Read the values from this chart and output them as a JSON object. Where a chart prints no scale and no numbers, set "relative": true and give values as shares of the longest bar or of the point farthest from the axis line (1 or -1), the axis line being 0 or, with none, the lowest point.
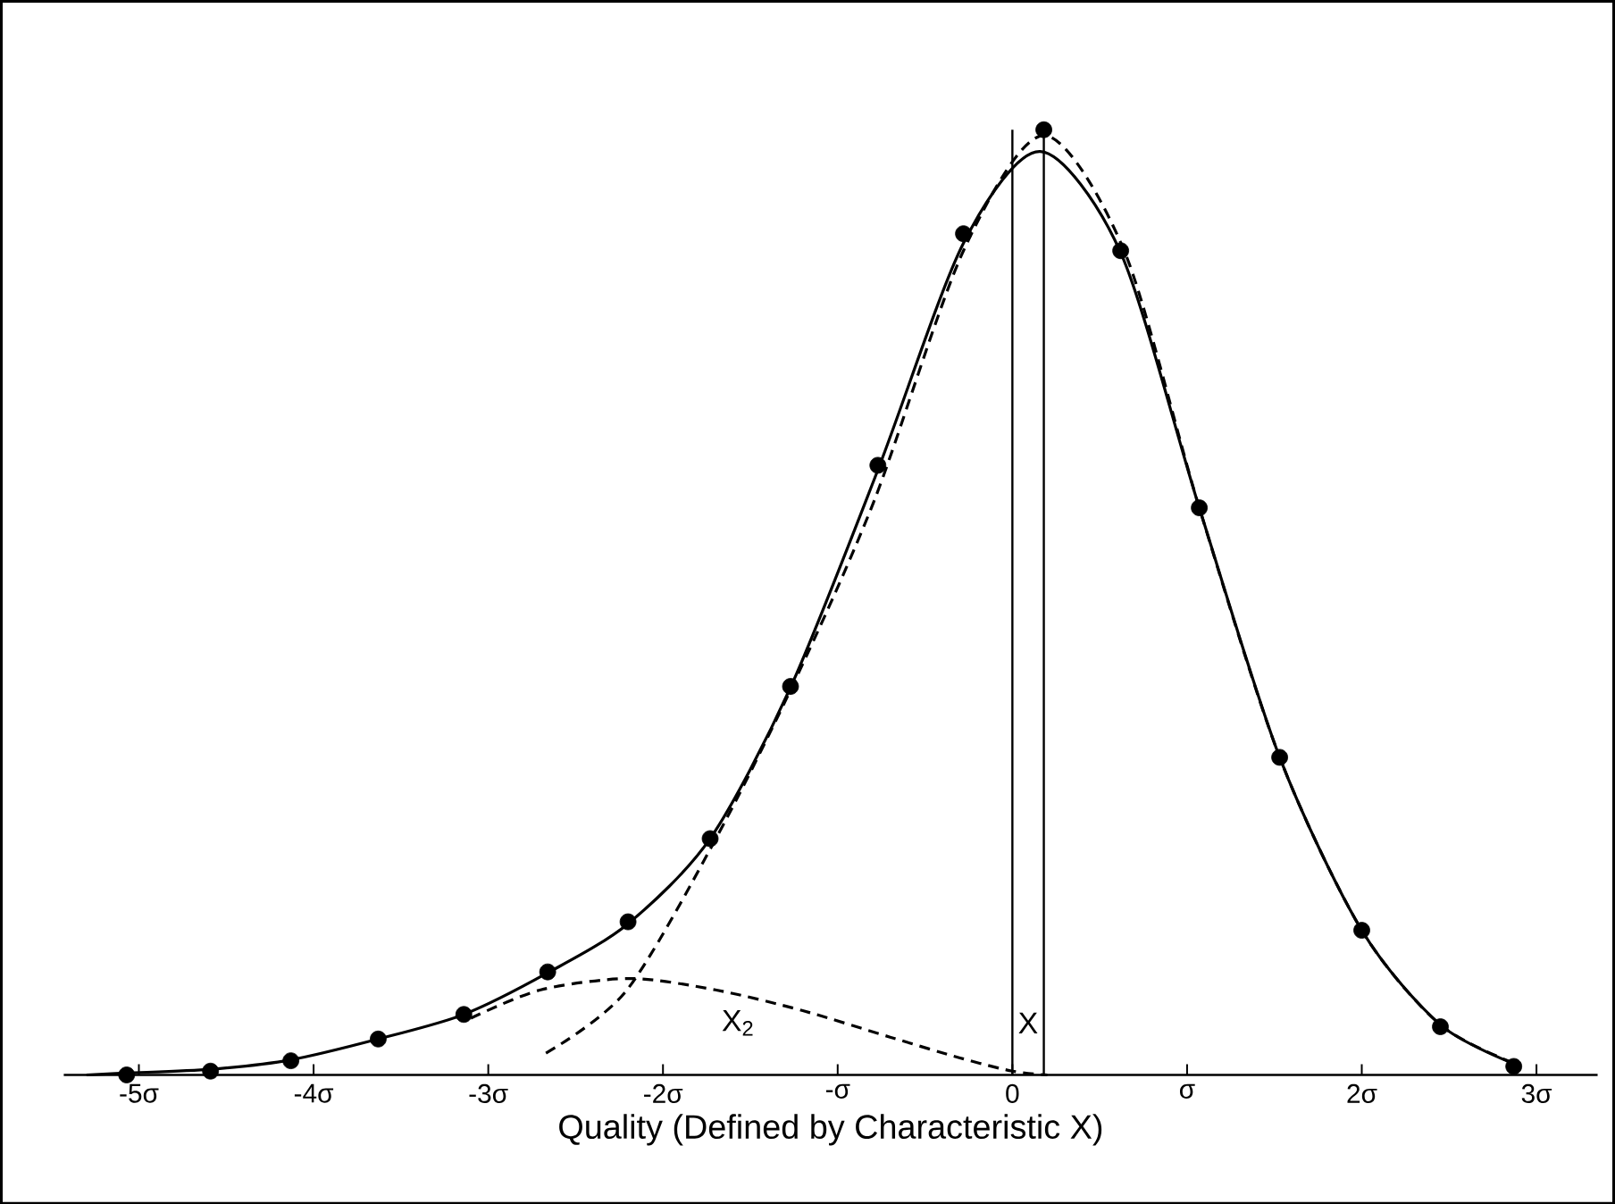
{
  "chart_data": {
    "type": "line",
    "relative": true,
    "xlabel": "Quality (Defined by Characteristic X)",
    "xlim": [
      -5.43,
      3.35
    ],
    "xticks": [
      {
        "value": -5,
        "label": "-5σ"
      },
      {
        "value": -4,
        "label": "-4σ"
      },
      {
        "value": -3,
        "label": "-3σ"
      },
      {
        "value": -2,
        "label": "-2σ"
      },
      {
        "value": -1,
        "label": "-σ"
      },
      0,
      {
        "value": 1,
        "label": "σ"
      },
      {
        "value": 2,
        "label": "2σ"
      },
      {
        "value": 3,
        "label": "3σ"
      }
    ],
    "grid": false,
    "marker": "circle",
    "series": [
      {
        "line_style": "solid",
        "marker": "none",
        "color": "#000000",
        "x": [
          -5.3,
          -5.07,
          -4.59,
          -4.13,
          -3.63,
          -3.14,
          -2.66,
          -2.2,
          -1.73,
          -1.27,
          -0.77,
          -0.28,
          0.16,
          0.62,
          1.07,
          1.53,
          2.0,
          2.45,
          2.87
        ],
        "values": [
          0,
          0.002,
          0.006,
          0.016,
          0.038,
          0.064,
          0.108,
          0.16,
          0.25,
          0.41,
          0.64,
          0.88,
          0.977,
          0.87,
          0.6,
          0.336,
          0.153,
          0.053,
          0.012
        ]
      },
      {
        "line_style": "dashed",
        "marker": "none",
        "color": "#000000",
        "x": [
          -2.67,
          -2.21,
          -1.7,
          -1.24,
          -0.79,
          -0.28,
          0.18,
          0.64,
          1.07,
          1.53,
          2.0,
          2.45,
          2.89
        ],
        "values": [
          0.023,
          0.089,
          0.249,
          0.419,
          0.608,
          0.872,
          0.994,
          0.872,
          0.6,
          0.336,
          0.153,
          0.053,
          0.011
        ]
      },
      {
        "line_style": "dashed",
        "marker": "none",
        "color": "#000000",
        "x": [
          -3.1,
          -2.7,
          -2.19,
          -1.7,
          -1.2,
          -0.7,
          -0.3,
          0,
          0.2
        ],
        "values": [
          0.06,
          0.09,
          0.102,
          0.09,
          0.068,
          0.04,
          0.018,
          0.004,
          0
        ]
      },
      {
        "type": "scatter",
        "color": "#000000",
        "x": [
          -5.07,
          -4.59,
          -4.13,
          -3.63,
          -3.14,
          -2.66,
          -2.2,
          -1.73,
          -1.27,
          -0.77,
          -0.28,
          0.18,
          0.62,
          1.07,
          1.53,
          2.0,
          2.45,
          2.87
        ],
        "values": [
          0,
          0.004,
          0.015,
          0.038,
          0.064,
          0.109,
          0.162,
          0.25,
          0.411,
          0.645,
          0.89,
          1.0,
          0.872,
          0.6,
          0.336,
          0.153,
          0.051,
          0.009
        ]
      }
    ],
    "ref_lines": [
      {
        "axis": "x",
        "value": 0
      },
      {
        "axis": "x",
        "value": 0.18
      }
    ],
    "annotations": [
      "X$_{2}$",
      "X"
    ]
  }
}
